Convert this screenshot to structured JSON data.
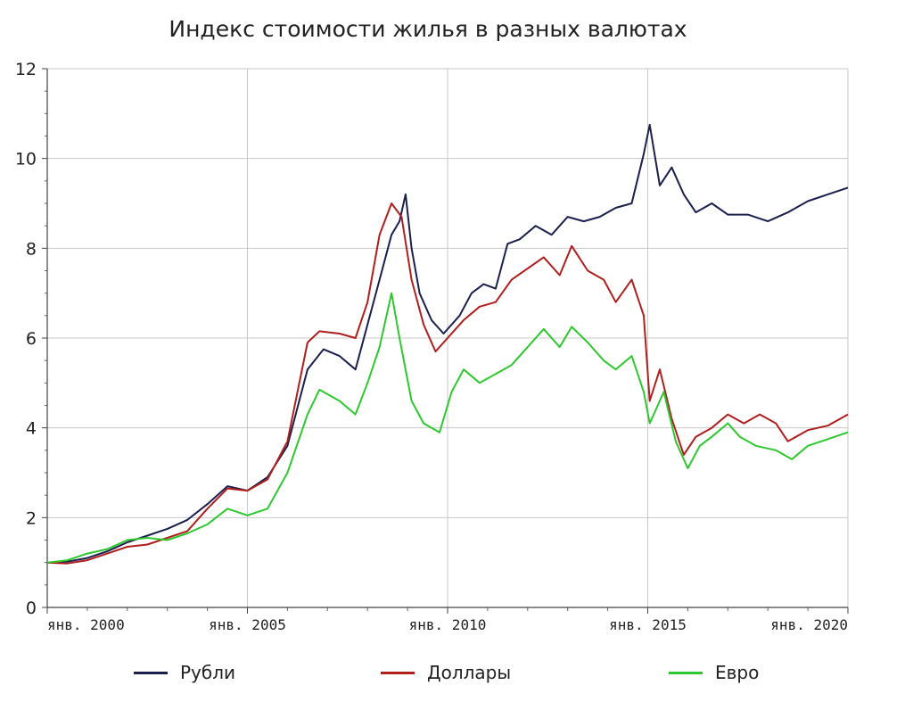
{
  "chart_data": {
    "type": "line",
    "title": "Индекс стоимости жилья в разных валютах",
    "xlabel": "",
    "ylabel": "",
    "ylim": [
      0,
      12
    ],
    "xlim": [
      2000,
      2020
    ],
    "y_ticks": [
      0,
      2,
      4,
      6,
      8,
      10,
      12
    ],
    "y_tick_labels": [
      "0",
      "2",
      "4",
      "6",
      "8",
      "10",
      "12"
    ],
    "x_ticks": [
      2000,
      2005,
      2010,
      2015,
      2020
    ],
    "x_tick_labels": [
      "янв. 2000",
      "янв. 2005",
      "янв. 2010",
      "янв. 2015",
      "янв. 2020"
    ],
    "grid": true,
    "legend_position": "bottom",
    "series": [
      {
        "name": "Рубли",
        "color": "#1b1f4e",
        "x": [
          2000,
          2000.5,
          2001,
          2001.5,
          2002,
          2002.5,
          2003,
          2003.5,
          2004,
          2004.5,
          2005,
          2005.5,
          2006,
          2006.5,
          2006.9,
          2007.3,
          2007.7,
          2008,
          2008.3,
          2008.6,
          2008.8,
          2008.95,
          2009.1,
          2009.3,
          2009.6,
          2009.9,
          2010.3,
          2010.6,
          2010.9,
          2011.2,
          2011.5,
          2011.8,
          2012.2,
          2012.6,
          2013,
          2013.4,
          2013.8,
          2014.2,
          2014.6,
          2014.9,
          2015.05,
          2015.3,
          2015.6,
          2015.9,
          2016.2,
          2016.6,
          2017,
          2017.5,
          2018,
          2018.5,
          2019,
          2019.5,
          2020
        ],
        "values": [
          1.0,
          1.02,
          1.1,
          1.25,
          1.45,
          1.6,
          1.75,
          1.95,
          2.3,
          2.7,
          2.6,
          2.9,
          3.6,
          5.3,
          5.75,
          5.6,
          5.3,
          6.3,
          7.3,
          8.3,
          8.6,
          9.2,
          8.0,
          7.0,
          6.4,
          6.1,
          6.5,
          7.0,
          7.2,
          7.1,
          8.1,
          8.2,
          8.5,
          8.3,
          8.7,
          8.6,
          8.7,
          8.9,
          9.0,
          10.1,
          10.75,
          9.4,
          9.8,
          9.2,
          8.8,
          9.0,
          8.75,
          8.75,
          8.6,
          8.8,
          9.05,
          9.2,
          9.35
        ]
      },
      {
        "name": "Доллары",
        "color": "#b01e1e",
        "x": [
          2000,
          2000.5,
          2001,
          2001.5,
          2002,
          2002.5,
          2003,
          2003.5,
          2004,
          2004.5,
          2005,
          2005.5,
          2006,
          2006.5,
          2006.8,
          2007.3,
          2007.7,
          2008,
          2008.3,
          2008.6,
          2008.85,
          2009.1,
          2009.4,
          2009.7,
          2010,
          2010.4,
          2010.8,
          2011.2,
          2011.6,
          2012,
          2012.4,
          2012.8,
          2013.1,
          2013.5,
          2013.9,
          2014.2,
          2014.6,
          2014.9,
          2015.05,
          2015.3,
          2015.6,
          2015.9,
          2016.2,
          2016.6,
          2017,
          2017.4,
          2017.8,
          2018.2,
          2018.5,
          2019,
          2019.5,
          2020
        ],
        "values": [
          1.0,
          0.98,
          1.05,
          1.2,
          1.35,
          1.4,
          1.55,
          1.7,
          2.2,
          2.65,
          2.6,
          2.85,
          3.7,
          5.9,
          6.15,
          6.1,
          6.0,
          6.8,
          8.3,
          9.0,
          8.7,
          7.3,
          6.3,
          5.7,
          6.0,
          6.4,
          6.7,
          6.8,
          7.3,
          7.55,
          7.8,
          7.4,
          8.05,
          7.5,
          7.3,
          6.8,
          7.3,
          6.5,
          4.6,
          5.3,
          4.2,
          3.4,
          3.8,
          4.0,
          4.3,
          4.1,
          4.3,
          4.1,
          3.7,
          3.95,
          4.05,
          4.3
        ]
      },
      {
        "name": "Евро",
        "color": "#2ec82e",
        "x": [
          2000,
          2000.5,
          2001,
          2001.5,
          2002,
          2002.5,
          2003,
          2003.5,
          2004,
          2004.5,
          2005,
          2005.5,
          2006,
          2006.5,
          2006.8,
          2007.3,
          2007.7,
          2008,
          2008.3,
          2008.6,
          2008.8,
          2009.1,
          2009.4,
          2009.8,
          2010.1,
          2010.4,
          2010.8,
          2011.2,
          2011.6,
          2012,
          2012.4,
          2012.8,
          2013.1,
          2013.5,
          2013.9,
          2014.2,
          2014.6,
          2014.9,
          2015.05,
          2015.4,
          2015.7,
          2016,
          2016.3,
          2016.6,
          2017,
          2017.3,
          2017.7,
          2018.2,
          2018.6,
          2019,
          2019.5,
          2020
        ],
        "values": [
          1.0,
          1.05,
          1.2,
          1.3,
          1.5,
          1.55,
          1.5,
          1.65,
          1.85,
          2.2,
          2.05,
          2.2,
          3.0,
          4.3,
          4.85,
          4.6,
          4.3,
          5.0,
          5.8,
          7.0,
          6.0,
          4.6,
          4.1,
          3.9,
          4.8,
          5.3,
          5.0,
          5.2,
          5.4,
          5.8,
          6.2,
          5.8,
          6.25,
          5.9,
          5.5,
          5.3,
          5.6,
          4.8,
          4.1,
          4.8,
          3.7,
          3.1,
          3.6,
          3.8,
          4.1,
          3.8,
          3.6,
          3.5,
          3.3,
          3.6,
          3.75,
          3.9
        ]
      }
    ]
  }
}
